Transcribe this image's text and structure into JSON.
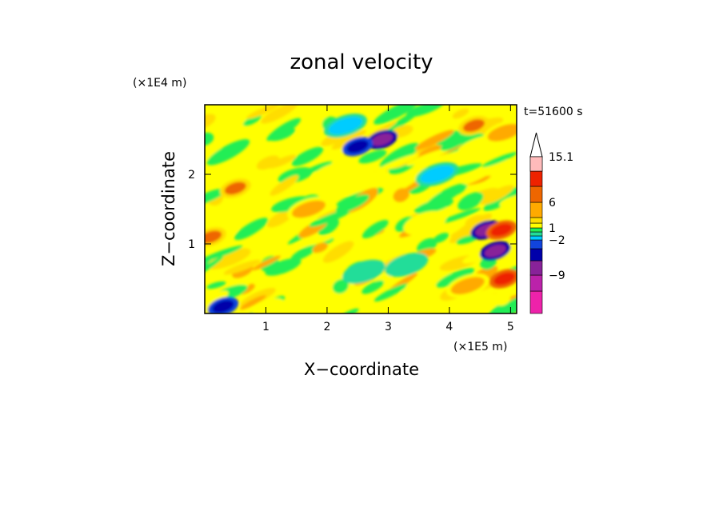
{
  "chart_data": {
    "type": "heatmap",
    "title": "zonal velocity",
    "xlabel": "X−coordinate",
    "ylabel": "Z−coordinate",
    "x_scale_label": "(×1E5 m)",
    "y_scale_label": "(×1E4 m)",
    "time_label": "t=51600 s",
    "xlim": [
      0,
      5.1
    ],
    "ylim": [
      0,
      3.0
    ],
    "x_ticks": [
      {
        "value": 1,
        "label": "1"
      },
      {
        "value": 2,
        "label": "2"
      },
      {
        "value": 3,
        "label": "3"
      },
      {
        "value": 4,
        "label": "4"
      },
      {
        "value": 5,
        "label": "5"
      }
    ],
    "y_ticks": [
      {
        "value": 1,
        "label": "1"
      },
      {
        "value": 2,
        "label": "2"
      }
    ],
    "colorbar": {
      "levels": [
        -15,
        -12,
        -9,
        -6,
        -4,
        -2,
        -1,
        0,
        1,
        2,
        4,
        6,
        9,
        12,
        15.1
      ],
      "labels": [
        {
          "value": 15.1,
          "label": "15.1"
        },
        {
          "value": 6,
          "label": "6"
        },
        {
          "value": 1,
          "label": "1"
        },
        {
          "value": -2,
          "label": "−2"
        },
        {
          "value": -9,
          "label": "−9"
        }
      ],
      "colors": [
        "#ee22aa",
        "#bb22aa",
        "#882299",
        "#0000aa",
        "#1144dd",
        "#00ccff",
        "#22dd99",
        "#22ee55",
        "#ffff00",
        "#ffdd00",
        "#ffaa00",
        "#ee6600",
        "#ee2200",
        "#ee6666",
        "#ffbbbb"
      ]
    },
    "features": [
      {
        "x": 2.9,
        "z": 2.5,
        "u": -9
      },
      {
        "x": 2.5,
        "z": 2.4,
        "u": -6
      },
      {
        "x": 2.3,
        "z": 2.7,
        "u": -2
      },
      {
        "x": 0.3,
        "z": 0.1,
        "u": -6
      },
      {
        "x": 0.5,
        "z": 1.8,
        "u": 6
      },
      {
        "x": 0.1,
        "z": 1.1,
        "u": 6
      },
      {
        "x": 1.7,
        "z": 1.5,
        "u": 4
      },
      {
        "x": 2.6,
        "z": 0.6,
        "u": -1
      },
      {
        "x": 3.3,
        "z": 0.7,
        "u": -1
      },
      {
        "x": 4.6,
        "z": 1.2,
        "u": -9
      },
      {
        "x": 4.75,
        "z": 0.9,
        "u": -9
      },
      {
        "x": 4.85,
        "z": 1.2,
        "u": 9
      },
      {
        "x": 4.9,
        "z": 0.5,
        "u": 9
      },
      {
        "x": 4.4,
        "z": 2.7,
        "u": 6
      },
      {
        "x": 4.9,
        "z": 2.6,
        "u": 4
      },
      {
        "x": 3.8,
        "z": 2.0,
        "u": -2
      },
      {
        "x": 4.3,
        "z": 0.4,
        "u": 4
      },
      {
        "x": 2.1,
        "z": 2.0,
        "u": 1
      },
      {
        "x": 3.6,
        "z": 1.3,
        "u": 1
      }
    ]
  }
}
